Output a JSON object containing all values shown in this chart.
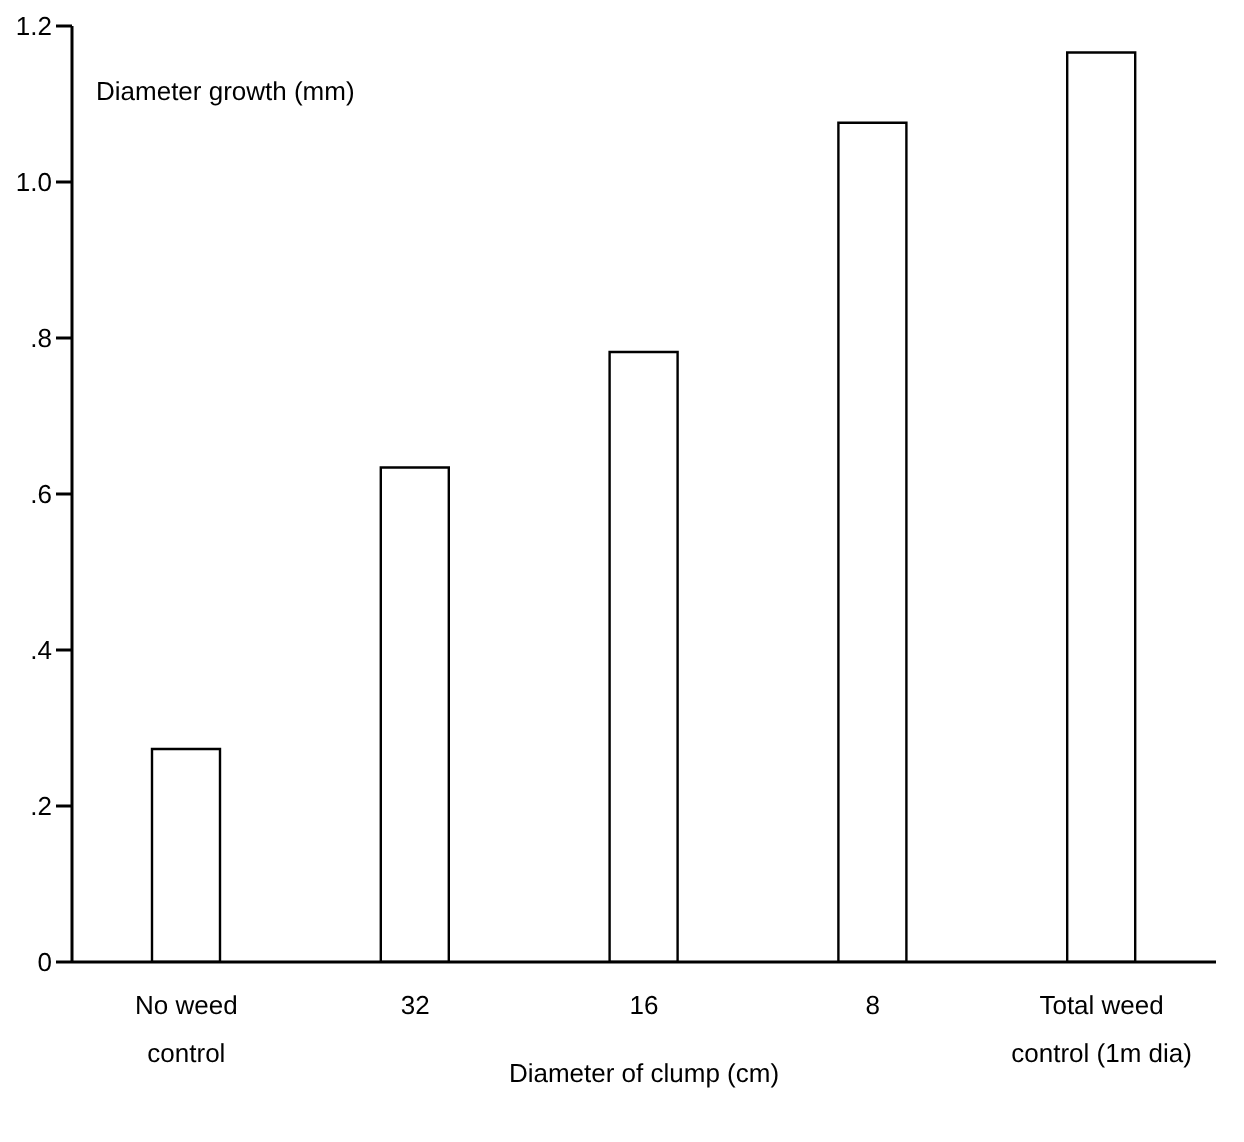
{
  "chart_data": {
    "type": "bar",
    "ylabel": "Diameter growth (mm)",
    "xlabel": "Diameter of clump (cm)",
    "categories": [
      "No weed\ncontrol",
      "32",
      "16",
      "8",
      "Total weed\ncontrol (1m dia)"
    ],
    "values": [
      0.273,
      0.634,
      0.782,
      1.076,
      1.166
    ],
    "color": "#ffffff",
    "ylim": [
      0,
      1.2
    ],
    "yticks": [
      0,
      {
        "value": 0.2,
        "label": ".2"
      },
      {
        "value": 0.4,
        "label": ".4"
      },
      {
        "value": 0.6,
        "label": ".6"
      },
      {
        "value": 0.8,
        "label": ".8"
      },
      {
        "value": 1.0,
        "label": "1.0"
      },
      {
        "value": 1.2,
        "label": "1.2"
      }
    ],
    "grid": false,
    "legend": false
  }
}
